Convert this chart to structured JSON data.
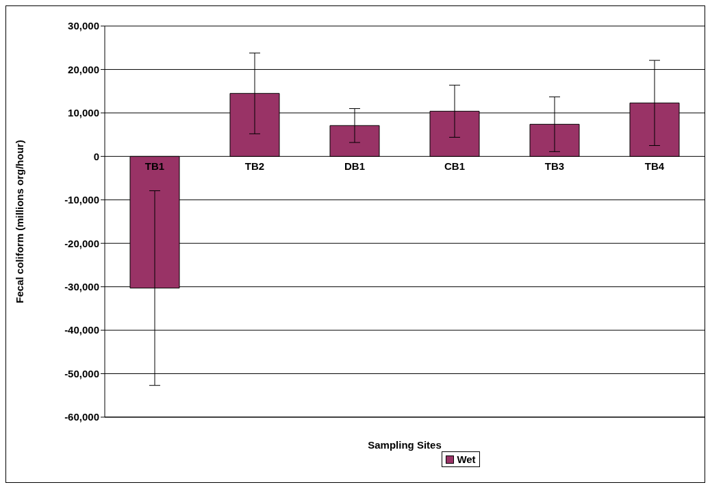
{
  "chart_data": {
    "type": "bar",
    "xlabel": "Sampling Sites",
    "ylabel": "Fecal coliform (millions org/hour)",
    "categories": [
      "TB1",
      "TB2",
      "DB1",
      "CB1",
      "TB3",
      "TB4"
    ],
    "series": [
      {
        "name": "Wet",
        "color": "#993366",
        "values": [
          -30300,
          14500,
          7100,
          10400,
          7400,
          12300
        ],
        "errors": [
          22400,
          9300,
          3900,
          6000,
          6300,
          9800
        ]
      }
    ],
    "ylim": [
      -60000,
      30000
    ],
    "yticks": [
      {
        "value": -60000,
        "label": "-60,000"
      },
      {
        "value": -50000,
        "label": "-50,000"
      },
      {
        "value": -40000,
        "label": "-40,000"
      },
      {
        "value": -30000,
        "label": "-30,000"
      },
      {
        "value": -20000,
        "label": "-20,000"
      },
      {
        "value": -10000,
        "label": "-10,000"
      },
      0,
      {
        "value": 10000,
        "label": "10,000"
      },
      {
        "value": 20000,
        "label": "20,000"
      },
      {
        "value": 30000,
        "label": "30,000"
      }
    ],
    "grid": "y",
    "legend": "bottom"
  }
}
